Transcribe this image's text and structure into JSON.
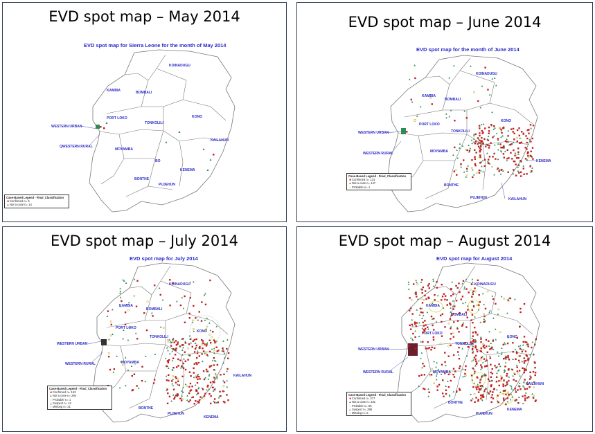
{
  "panels": [
    {
      "title": "EVD spot map – May 2014",
      "map_title": "EVD spot map for Sierra Leone for the month of May 2014",
      "legend": {
        "title": "Case-Based Legend - Final_Classification",
        "items": [
          {
            "symbol": "■",
            "color": "#c0201f",
            "label": "Confirmed  n= 5"
          },
          {
            "symbol": "▲",
            "color": "#2e8b57",
            "label": "Not a case  n= 14"
          }
        ]
      },
      "districts": [
        "KOINADUGU",
        "KAMBIA",
        "BOMBALI",
        "PORT LOKO",
        "WESTERN URBAN",
        "QWESTERN RURAL",
        "TONKOLILI",
        "KONO",
        "KAILAHUN",
        "MOYAMBA",
        "BO",
        "KENEMA",
        "BONTHE",
        "PUJEHUN"
      ]
    },
    {
      "title": "EVD spot map – June 2014",
      "map_title": "EVD spot map for the month of June 2014",
      "legend": {
        "title": "Case-Based Legend - Final_Classification",
        "items": [
          {
            "symbol": "■",
            "color": "#c0201f",
            "label": "Confirmed  n= 131"
          },
          {
            "symbol": "▲",
            "color": "#2e8b57",
            "label": "Not a case  n= 147"
          },
          {
            "symbol": "○",
            "color": "#c8a800",
            "label": "Probable  n= 1"
          }
        ]
      },
      "districts": [
        "KOINADUGU",
        "KAMBIA",
        "BOMBALI",
        "PORT LOKO",
        "TONKOLILI",
        "KONO",
        "WESTERN URBAN",
        "WESTERN RURAL",
        "MOYAMBA",
        "KENEMA",
        "BONTHE",
        "PUJEHUN",
        "KAILAHUN"
      ]
    },
    {
      "title": "EVD spot map – July 2014",
      "map_title": "EVD spot map for July 2014",
      "legend": {
        "title": "Case-Based Legend - Final_Classification",
        "items": [
          {
            "symbol": "■",
            "color": "#c0201f",
            "label": "Confirmed  n= 163"
          },
          {
            "symbol": "▲",
            "color": "#2e8b57",
            "label": "Not a case  n= 294"
          },
          {
            "symbol": "○",
            "color": "#c8a800",
            "label": "Probable  n= 1"
          },
          {
            "symbol": "△",
            "color": "#555555",
            "label": "Suspect  n= 12"
          },
          {
            "symbol": "○",
            "color": "#555555",
            "label": "Missing  n= 31"
          }
        ]
      },
      "districts": [
        "KOINADUGU",
        "KAMBIA",
        "BOMBALI",
        "PORT LOKO",
        "KONO",
        "TONKOLILI",
        "WESTERN URBAN",
        "WESTERN RURAL",
        "MOYAMBA",
        "KAILAHUN",
        "BONTHE",
        "PUJEHUN",
        "KENEMA"
      ]
    },
    {
      "title": "EVD spot map – August 2014",
      "map_title": "EVD spot map for August 2014",
      "legend": {
        "title": "Case-Based Legend - Final_Classification",
        "items": [
          {
            "symbol": "■",
            "color": "#c0201f",
            "label": "Confirmed  n= 477"
          },
          {
            "symbol": "▲",
            "color": "#2e8b57",
            "label": "Not a case  n= 331"
          },
          {
            "symbol": "○",
            "color": "#c8a800",
            "label": "Probable  n= 55"
          },
          {
            "symbol": "△",
            "color": "#555555",
            "label": "Suspect  n= 295"
          },
          {
            "symbol": "○",
            "color": "#555555",
            "label": "Missing  n= 5"
          }
        ]
      },
      "districts": [
        "KOINADUGU",
        "KAMBIA",
        "BOMBALI",
        "PORT LOKO",
        "TONKOLILI",
        "KONO",
        "WESTERN URBAN",
        "WESTERN RURAL",
        "MOYAMBA",
        "KAILAHUN",
        "BONTHE",
        "PUJEHUN",
        "KENEMA"
      ]
    }
  ],
  "colors": {
    "confirmed": "#c0201f",
    "not_a_case": "#2e8b57",
    "probable": "#c8a800",
    "district_label": "#2a2ac8",
    "border": "#2f3b4f"
  }
}
